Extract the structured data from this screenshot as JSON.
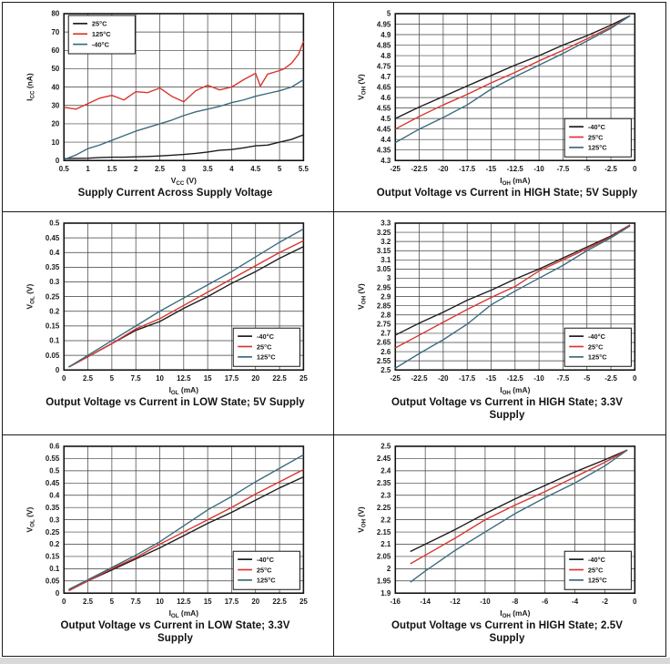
{
  "page": {
    "background": "#ffffff",
    "frame_border_color": "#1a1a1a",
    "bottom_strip_color": "#d9d9d9"
  },
  "palette": {
    "black": "#1c1c1c",
    "red": "#d8352e",
    "teal": "#3a6b7d",
    "grid_line": "#3c3c3c",
    "plot_frame": "#111111",
    "legend_bg": "#ffffff"
  },
  "chart_data": [
    {
      "type": "line",
      "title_lines": [
        "Supply Current Across Supply Voltage"
      ],
      "xlabel": {
        "base": "V",
        "sub": "CC",
        "unit": "(V)"
      },
      "ylabel": {
        "base": "I",
        "sub": "CC",
        "unit": "(nA)"
      },
      "xlim": [
        0.5,
        5.5
      ],
      "ylim": [
        0,
        80
      ],
      "xticks": [
        "0.5",
        "1",
        "1.5",
        "2",
        "2.5",
        "3",
        "3.5",
        "4",
        "4.5",
        "5",
        "5.5"
      ],
      "yticks": [
        "80",
        "70",
        "60",
        "50",
        "40",
        "30",
        "20",
        "10",
        "0"
      ],
      "grid": true,
      "legend": {
        "position": "top-left",
        "order": [
          "25°C",
          "125°C",
          "-40°C"
        ]
      },
      "series": [
        {
          "name": "25°C",
          "color": "black",
          "x": [
            0.5,
            0.75,
            1,
            1.25,
            1.5,
            1.75,
            2,
            2.25,
            2.5,
            2.75,
            3,
            3.25,
            3.5,
            3.75,
            4,
            4.25,
            4.5,
            4.75,
            5,
            5.25,
            5.5
          ],
          "y": [
            1,
            1.2,
            1.3,
            1.6,
            1.8,
            1.8,
            2,
            2.2,
            2.5,
            2.9,
            3.3,
            3.9,
            4.6,
            5.6,
            6,
            6.9,
            8,
            8.4,
            10,
            11.5,
            14
          ]
        },
        {
          "name": "125°C",
          "color": "red",
          "x": [
            0.5,
            0.75,
            1,
            1.25,
            1.5,
            1.75,
            2,
            2.25,
            2.5,
            2.75,
            3,
            3.25,
            3.5,
            3.75,
            4,
            4.25,
            4.5,
            4.6,
            4.75,
            5,
            5.1,
            5.25,
            5.4,
            5.5
          ],
          "y": [
            29,
            28,
            31,
            34,
            35.5,
            33,
            37.5,
            37,
            39.5,
            35,
            32,
            38,
            41,
            38.5,
            40,
            44,
            47.5,
            40.5,
            47,
            49,
            50,
            53,
            58,
            65
          ]
        },
        {
          "name": "-40°C",
          "color": "teal",
          "x": [
            0.5,
            0.75,
            1,
            1.25,
            1.5,
            1.75,
            2,
            2.25,
            2.5,
            2.75,
            3,
            3.25,
            3.5,
            3.75,
            4,
            4.25,
            4.5,
            4.75,
            5,
            5.25,
            5.5
          ],
          "y": [
            0.5,
            3,
            6.5,
            8.5,
            11,
            13.5,
            16,
            18,
            20,
            22,
            24.5,
            26.5,
            28,
            29.5,
            31.5,
            33,
            35,
            36.5,
            38,
            40,
            44
          ]
        }
      ]
    },
    {
      "type": "line",
      "title_lines": [
        "Output Voltage vs Current in HIGH State; 5V Supply"
      ],
      "xlabel": {
        "base": "I",
        "sub": "OH",
        "unit": "(mA)"
      },
      "ylabel": {
        "base": "V",
        "sub": "OH",
        "unit": "(V)"
      },
      "xlim": [
        -25,
        0
      ],
      "ylim": [
        4.3,
        5
      ],
      "xticks": [
        "-25",
        "-22.5",
        "-20",
        "-17.5",
        "-15",
        "-12.5",
        "-10",
        "-7.5",
        "-5",
        "-2.5",
        "0"
      ],
      "yticks": [
        "5",
        "4.95",
        "4.9",
        "4.85",
        "4.8",
        "4.75",
        "4.7",
        "4.65",
        "4.6",
        "4.55",
        "4.5",
        "4.45",
        "4.4",
        "4.35",
        "4.3"
      ],
      "grid": true,
      "legend": {
        "position": "bottom-right",
        "order": [
          "-40°C",
          "25°C",
          "125°C"
        ]
      },
      "series": [
        {
          "name": "-40°C",
          "color": "black",
          "x": [
            -25,
            -22.5,
            -20,
            -17.5,
            -15,
            -12.5,
            -10,
            -7.5,
            -5,
            -2.5,
            -0.5
          ],
          "y": [
            4.5,
            4.555,
            4.605,
            4.655,
            4.705,
            4.755,
            4.8,
            4.85,
            4.895,
            4.945,
            4.99
          ]
        },
        {
          "name": "25°C",
          "color": "red",
          "x": [
            -25,
            -22.5,
            -20,
            -17.5,
            -15,
            -12.5,
            -10,
            -7.5,
            -5,
            -2.5,
            -0.5
          ],
          "y": [
            4.45,
            4.51,
            4.565,
            4.615,
            4.67,
            4.72,
            4.775,
            4.825,
            4.88,
            4.935,
            4.99
          ]
        },
        {
          "name": "125°C",
          "color": "teal",
          "x": [
            -25,
            -22.5,
            -20,
            -17.5,
            -15,
            -12.5,
            -10,
            -7.5,
            -5,
            -2.5,
            -0.5
          ],
          "y": [
            4.385,
            4.45,
            4.505,
            4.565,
            4.64,
            4.7,
            4.755,
            4.81,
            4.87,
            4.93,
            4.99
          ]
        }
      ]
    },
    {
      "type": "line",
      "title_lines": [
        "Output Voltage vs Current in LOW State; 5V Supply"
      ],
      "xlabel": {
        "base": "I",
        "sub": "OL",
        "unit": "(mA)"
      },
      "ylabel": {
        "base": "V",
        "sub": "OL",
        "unit": "(V)"
      },
      "xlim": [
        0,
        25
      ],
      "ylim": [
        0,
        0.5
      ],
      "xticks": [
        "0",
        "2.5",
        "5",
        "7.5",
        "10",
        "12.5",
        "15",
        "17.5",
        "20",
        "22.5",
        "25"
      ],
      "yticks": [
        "0.5",
        "0.45",
        "0.4",
        "0.35",
        "0.3",
        "0.25",
        "0.2",
        "0.15",
        "0.1",
        "0.05",
        "0"
      ],
      "grid": true,
      "legend": {
        "position": "bottom-right",
        "order": [
          "-40°C",
          "25°C",
          "125°C"
        ]
      },
      "series": [
        {
          "name": "-40°C",
          "color": "black",
          "x": [
            0.5,
            2.5,
            5,
            7.5,
            10,
            12.5,
            15,
            17.5,
            20,
            22.5,
            25
          ],
          "y": [
            0.01,
            0.045,
            0.09,
            0.135,
            0.165,
            0.21,
            0.25,
            0.295,
            0.335,
            0.38,
            0.42
          ]
        },
        {
          "name": "25°C",
          "color": "red",
          "x": [
            0.5,
            2.5,
            5,
            7.5,
            10,
            12.5,
            15,
            17.5,
            20,
            22.5,
            25
          ],
          "y": [
            0.01,
            0.045,
            0.09,
            0.14,
            0.175,
            0.22,
            0.265,
            0.31,
            0.355,
            0.4,
            0.44
          ]
        },
        {
          "name": "125°C",
          "color": "teal",
          "x": [
            0.5,
            2.5,
            5,
            7.5,
            10,
            12.5,
            15,
            17.5,
            20,
            22.5,
            25
          ],
          "y": [
            0.01,
            0.05,
            0.1,
            0.15,
            0.2,
            0.245,
            0.29,
            0.335,
            0.385,
            0.435,
            0.48
          ]
        }
      ]
    },
    {
      "type": "line",
      "title_lines": [
        "Output Voltage vs Current in HIGH State; 3.3V",
        "Supply"
      ],
      "xlabel": {
        "base": "I",
        "sub": "OH",
        "unit": "(mA)"
      },
      "ylabel": {
        "base": "V",
        "sub": "OH",
        "unit": "(V)"
      },
      "xlim": [
        -25,
        0
      ],
      "ylim": [
        2.5,
        3.3
      ],
      "xticks": [
        "-25",
        "-22.5",
        "-20",
        "-17.5",
        "-15",
        "-12.5",
        "-10",
        "-7.5",
        "-5",
        "-2.5",
        "0"
      ],
      "yticks": [
        "3.3",
        "3.25",
        "3.2",
        "3.15",
        "3.1",
        "3.05",
        "3",
        "2.95",
        "2.9",
        "2.85",
        "2.8",
        "2.75",
        "2.7",
        "2.65",
        "2.6",
        "2.55",
        "2.5"
      ],
      "grid": true,
      "legend": {
        "position": "bottom-right",
        "order": [
          "-40°C",
          "25°C",
          "125°C"
        ]
      },
      "series": [
        {
          "name": "-40°C",
          "color": "black",
          "x": [
            -25,
            -22.5,
            -20,
            -17.5,
            -15,
            -12.5,
            -10,
            -7.5,
            -5,
            -2.5,
            -0.5
          ],
          "y": [
            2.69,
            2.755,
            2.815,
            2.88,
            2.935,
            2.995,
            3.05,
            3.11,
            3.17,
            3.23,
            3.29
          ]
        },
        {
          "name": "25°C",
          "color": "red",
          "x": [
            -25,
            -22.5,
            -20,
            -17.5,
            -15,
            -12.5,
            -10,
            -7.5,
            -5,
            -2.5,
            -0.5
          ],
          "y": [
            2.62,
            2.69,
            2.76,
            2.83,
            2.895,
            2.955,
            3.04,
            3.1,
            3.16,
            3.225,
            3.29
          ]
        },
        {
          "name": "125°C",
          "color": "teal",
          "x": [
            -25,
            -22.5,
            -20,
            -17.5,
            -15,
            -12.5,
            -10,
            -7.5,
            -5,
            -2.5,
            -0.5
          ],
          "y": [
            2.51,
            2.59,
            2.665,
            2.75,
            2.855,
            2.93,
            3.0,
            3.07,
            3.15,
            3.22,
            3.285
          ]
        }
      ]
    },
    {
      "type": "line",
      "title_lines": [
        "Output Voltage vs Current in LOW State; 3.3V",
        "Supply"
      ],
      "xlabel": {
        "base": "I",
        "sub": "OL",
        "unit": "(mA)"
      },
      "ylabel": {
        "base": "V",
        "sub": "OL",
        "unit": "(V)"
      },
      "xlim": [
        0,
        25
      ],
      "ylim": [
        0,
        0.6
      ],
      "xticks": [
        "0",
        "2.5",
        "5",
        "7.5",
        "10",
        "12.5",
        "15",
        "17.5",
        "20",
        "22.5",
        "25"
      ],
      "yticks": [
        "0.6",
        "0.55",
        "0.5",
        "0.45",
        "0.4",
        "0.35",
        "0.3",
        "0.25",
        "0.2",
        "0.15",
        "0.1",
        "0.05",
        "0"
      ],
      "grid": true,
      "legend": {
        "position": "bottom-right",
        "order": [
          "-40°C",
          "25°C",
          "125°C"
        ]
      },
      "series": [
        {
          "name": "-40°C",
          "color": "black",
          "x": [
            0.5,
            2.5,
            5,
            7.5,
            10,
            12.5,
            15,
            17.5,
            20,
            22.5,
            25
          ],
          "y": [
            0.01,
            0.05,
            0.095,
            0.14,
            0.185,
            0.235,
            0.285,
            0.33,
            0.38,
            0.43,
            0.475
          ]
        },
        {
          "name": "25°C",
          "color": "red",
          "x": [
            0.5,
            2.5,
            5,
            7.5,
            10,
            12.5,
            15,
            17.5,
            20,
            22.5,
            25
          ],
          "y": [
            0.01,
            0.05,
            0.1,
            0.145,
            0.2,
            0.25,
            0.3,
            0.35,
            0.405,
            0.455,
            0.505
          ]
        },
        {
          "name": "125°C",
          "color": "teal",
          "x": [
            0.5,
            2.5,
            5,
            7.5,
            10,
            12.5,
            15,
            17.5,
            20,
            22.5,
            25
          ],
          "y": [
            0.015,
            0.055,
            0.105,
            0.155,
            0.21,
            0.275,
            0.34,
            0.395,
            0.455,
            0.51,
            0.565
          ]
        }
      ]
    },
    {
      "type": "line",
      "title_lines": [
        "Output Voltage vs Current in HIGH State; 2.5V",
        "Supply"
      ],
      "xlabel": {
        "base": "I",
        "sub": "OH",
        "unit": "(mA)"
      },
      "ylabel": {
        "base": "V",
        "sub": "OH",
        "unit": "(V)"
      },
      "xlim": [
        -16,
        0
      ],
      "ylim": [
        1.9,
        2.5
      ],
      "xticks": [
        "-16",
        "-14",
        "-12",
        "-10",
        "-8",
        "-6",
        "-4",
        "-2",
        "0"
      ],
      "yticks": [
        "2.5",
        "2.45",
        "2.4",
        "2.35",
        "2.3",
        "2.25",
        "2.2",
        "2.15",
        "2.1",
        "2.05",
        "2",
        "1.95",
        "1.9"
      ],
      "grid": true,
      "legend": {
        "position": "bottom-right",
        "order": [
          "-40°C",
          "25°C",
          "125°C"
        ]
      },
      "series": [
        {
          "name": "-40°C",
          "color": "black",
          "x": [
            -15,
            -14,
            -12,
            -10,
            -8,
            -6,
            -4,
            -2,
            -0.5
          ],
          "y": [
            2.07,
            2.1,
            2.16,
            2.225,
            2.285,
            2.34,
            2.395,
            2.445,
            2.485
          ]
        },
        {
          "name": "25°C",
          "color": "red",
          "x": [
            -15,
            -14,
            -12,
            -10,
            -8,
            -6,
            -4,
            -2,
            -0.5
          ],
          "y": [
            2.02,
            2.055,
            2.125,
            2.2,
            2.26,
            2.315,
            2.375,
            2.435,
            2.485
          ]
        },
        {
          "name": "125°C",
          "color": "teal",
          "x": [
            -15,
            -14,
            -12,
            -10,
            -8,
            -6,
            -4,
            -2,
            -0.5
          ],
          "y": [
            1.945,
            1.99,
            2.075,
            2.15,
            2.225,
            2.29,
            2.35,
            2.42,
            2.485
          ]
        }
      ]
    }
  ]
}
